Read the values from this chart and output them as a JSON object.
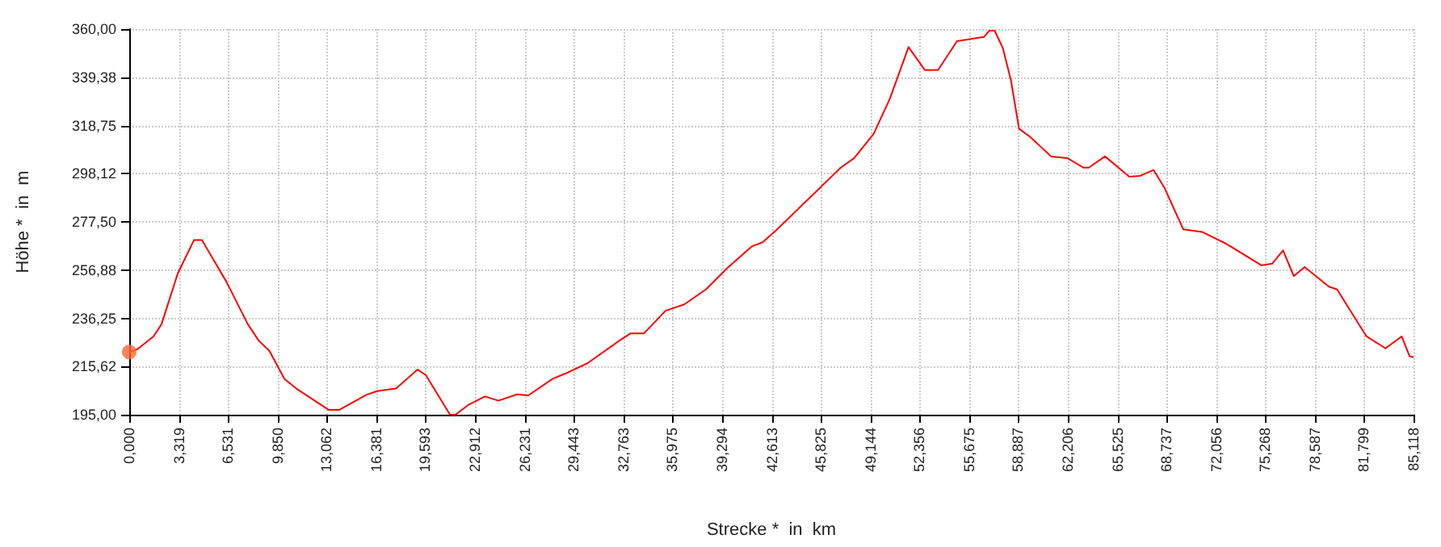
{
  "chart_data": {
    "type": "line",
    "xlabel": "Strecke *  in  km",
    "ylabel": "Höhe *  in  m",
    "xlim": [
      0,
      85.118
    ],
    "ylim": [
      195,
      360
    ],
    "xticks": [
      {
        "value": 0,
        "label": "0,000"
      },
      {
        "value": 3.319,
        "label": "3,319"
      },
      {
        "value": 6.531,
        "label": "6,531"
      },
      {
        "value": 9.85,
        "label": "9,850"
      },
      {
        "value": 13.062,
        "label": "13,062"
      },
      {
        "value": 16.381,
        "label": "16,381"
      },
      {
        "value": 19.593,
        "label": "19,593"
      },
      {
        "value": 22.912,
        "label": "22,912"
      },
      {
        "value": 26.231,
        "label": "26,231"
      },
      {
        "value": 29.443,
        "label": "29,443"
      },
      {
        "value": 32.763,
        "label": "32,763"
      },
      {
        "value": 35.975,
        "label": "35,975"
      },
      {
        "value": 39.294,
        "label": "39,294"
      },
      {
        "value": 42.613,
        "label": "42,613"
      },
      {
        "value": 45.825,
        "label": "45,825"
      },
      {
        "value": 49.144,
        "label": "49,144"
      },
      {
        "value": 52.356,
        "label": "52,356"
      },
      {
        "value": 55.675,
        "label": "55,675"
      },
      {
        "value": 58.887,
        "label": "58,887"
      },
      {
        "value": 62.206,
        "label": "62,206"
      },
      {
        "value": 65.525,
        "label": "65,525"
      },
      {
        "value": 68.737,
        "label": "68,737"
      },
      {
        "value": 72.056,
        "label": "72,056"
      },
      {
        "value": 75.268,
        "label": "75,268"
      },
      {
        "value": 78.587,
        "label": "78,587"
      },
      {
        "value": 81.799,
        "label": "81,799"
      },
      {
        "value": 85.118,
        "label": "85,118"
      }
    ],
    "yticks": [
      {
        "value": 195,
        "label": "195,00"
      },
      {
        "value": 215.62,
        "label": "215,62"
      },
      {
        "value": 236.25,
        "label": "236,25"
      },
      {
        "value": 256.88,
        "label": "256,88"
      },
      {
        "value": 277.5,
        "label": "277,50"
      },
      {
        "value": 298.12,
        "label": "298,12"
      },
      {
        "value": 318.75,
        "label": "318,75"
      },
      {
        "value": 339.38,
        "label": "339,38"
      },
      {
        "value": 360,
        "label": "360,00"
      }
    ],
    "grid": true,
    "marker": "none",
    "series": [
      {
        "color": "#ff0000",
        "x": [
          0,
          0.54,
          1.07,
          1.61,
          2.14,
          3.22,
          4.29,
          4.82,
          6.43,
          7.86,
          8.57,
          9.29,
          10.29,
          11.07,
          12.86,
          13.21,
          13.93,
          15.72,
          16.43,
          17.68,
          19.11,
          19.65,
          21.26,
          21.62,
          22.5,
          23.58,
          24.47,
          25.72,
          26.44,
          28.05,
          28.94,
          29.47,
          30.37,
          32.51,
          33.23,
          34.12,
          35.55,
          36.79,
          38.22,
          39.65,
          41.26,
          41.98,
          42.87,
          47.16,
          48.05,
          49.33,
          50.4,
          51.65,
          52.72,
          53.61,
          54.86,
          56.65,
          57.0,
          57.36,
          57.9,
          58.44,
          58.97,
          59.68,
          61.1,
          62.17,
          63.25,
          63.6,
          64.67,
          66.28,
          67.0,
          67.89,
          68.6,
          69.86,
          71.1,
          72.71,
          75.04,
          75.75,
          76.47,
          77.18,
          77.9,
          79.51,
          80.05,
          82.0,
          83.26,
          84.33,
          84.86,
          85.118
        ],
        "values": [
          221.8,
          223,
          225.7,
          228.5,
          233.7,
          255.5,
          269.7,
          269.7,
          252,
          233.7,
          226.8,
          222.3,
          210.3,
          206.2,
          198.6,
          197.1,
          197.1,
          203.5,
          205.1,
          206.2,
          214.3,
          212,
          195,
          195,
          199.3,
          202.8,
          201,
          203.7,
          203.2,
          210.3,
          212.7,
          214.3,
          217,
          226.8,
          229.8,
          229.8,
          239.5,
          242.2,
          248.6,
          257.8,
          267,
          268.8,
          273.9,
          300.7,
          304.8,
          315.1,
          330,
          352.3,
          342.5,
          342.5,
          354.8,
          356.6,
          359.3,
          359.3,
          351.8,
          338,
          317.4,
          314,
          305.5,
          304.8,
          300.7,
          300.7,
          305.5,
          296.8,
          297.2,
          299.7,
          292.2,
          274.3,
          273.2,
          268.1,
          258.9,
          259.6,
          265.3,
          254.3,
          258.2,
          249.8,
          248.6,
          228.5,
          223.4,
          228.5,
          220,
          219.6
        ]
      },
      {
        "type": "scatter",
        "marker": "circle",
        "color": "#ff6633",
        "x": [
          0
        ],
        "values": [
          221.8
        ]
      }
    ]
  }
}
